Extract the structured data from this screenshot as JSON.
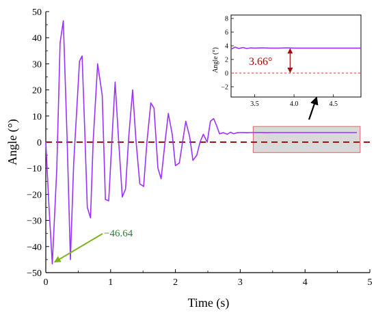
{
  "chart_data": [
    {
      "type": "line",
      "xlabel": "Time (s)",
      "ylabel": "Angle (°)",
      "xlim": [
        0,
        5
      ],
      "ylim": [
        -50,
        50
      ],
      "x_ticks": [
        0,
        1,
        2,
        3,
        4,
        5
      ],
      "y_ticks": [
        50,
        40,
        30,
        20,
        10,
        0,
        -10,
        -20,
        -30,
        -40,
        -50
      ],
      "grid": false,
      "series": [
        {
          "color": "#9b30ff",
          "x": [
            0,
            0.05,
            0.1,
            0.17,
            0.22,
            0.27,
            0.33,
            0.38,
            0.43,
            0.52,
            0.56,
            0.6,
            0.64,
            0.69,
            0.73,
            0.8,
            0.87,
            0.92,
            0.97,
            1.03,
            1.07,
            1.12,
            1.18,
            1.23,
            1.28,
            1.34,
            1.39,
            1.45,
            1.51,
            1.56,
            1.62,
            1.67,
            1.73,
            1.78,
            1.84,
            1.89,
            1.95,
            2.0,
            2.06,
            2.11,
            2.16,
            2.22,
            2.27,
            2.33,
            2.38,
            2.43,
            2.49,
            2.54,
            2.59,
            2.64,
            2.68,
            2.74,
            2.8,
            2.85,
            2.9,
            2.95,
            3.0,
            3.05,
            3.1,
            3.15,
            3.2,
            3.3,
            3.4,
            3.5,
            3.6,
            3.7,
            4.0,
            4.3,
            4.6,
            4.8
          ],
          "y": [
            0,
            -25,
            -46.64,
            -10,
            38,
            46.5,
            0,
            -45,
            -8,
            31,
            33,
            5,
            -25,
            -29,
            0,
            30,
            18,
            -22,
            -22.5,
            5,
            23,
            2,
            -21,
            -18,
            2,
            20,
            1,
            -16,
            -17,
            0,
            15,
            13,
            -10,
            -14,
            0,
            11,
            3,
            -9,
            -8,
            0,
            8,
            2,
            -7,
            -5,
            0,
            3,
            0,
            8,
            9,
            6,
            3.2,
            3.6,
            3.0,
            3.8,
            3.2,
            3.6,
            3.66,
            3.7,
            3.6,
            3.66,
            3.66,
            3.7,
            3.6,
            3.66,
            3.66,
            3.66,
            3.66,
            3.66,
            3.66,
            3.66
          ]
        }
      ],
      "reference_line": {
        "y": 0,
        "color": "#a01010",
        "style": "dashed"
      },
      "highlight_box": {
        "x_range": [
          3.2,
          4.85
        ],
        "y_range": [
          -4,
          6
        ]
      },
      "annotations": [
        {
          "text": "-46.64",
          "x": 0.1,
          "y": -46.64,
          "color": "#2e7d32"
        }
      ]
    },
    {
      "type": "line",
      "ylabel": "Angle (°)",
      "xlim": [
        3.2,
        4.85
      ],
      "ylim": [
        -3.5,
        8.5
      ],
      "x_ticks": [
        3.5,
        4.0,
        4.5
      ],
      "y_ticks": [
        8,
        6,
        4,
        2,
        0,
        -2
      ],
      "series": [
        {
          "color": "#9b30ff",
          "x": [
            3.2,
            3.25,
            3.3,
            3.35,
            3.4,
            3.45,
            3.5,
            3.6,
            3.7,
            3.8,
            3.9,
            4.0,
            4.2,
            4.4,
            4.6,
            4.85
          ],
          "y": [
            3.5,
            3.8,
            3.6,
            3.75,
            3.6,
            3.7,
            3.66,
            3.7,
            3.66,
            3.66,
            3.7,
            3.66,
            3.66,
            3.66,
            3.66,
            3.66
          ]
        }
      ],
      "reference_line": {
        "y": 0,
        "color": "#e03030",
        "style": "dashed"
      },
      "annotations": [
        {
          "text": "3.66°",
          "x": 3.95,
          "y": 1.8,
          "color": "#b00000"
        }
      ]
    }
  ]
}
